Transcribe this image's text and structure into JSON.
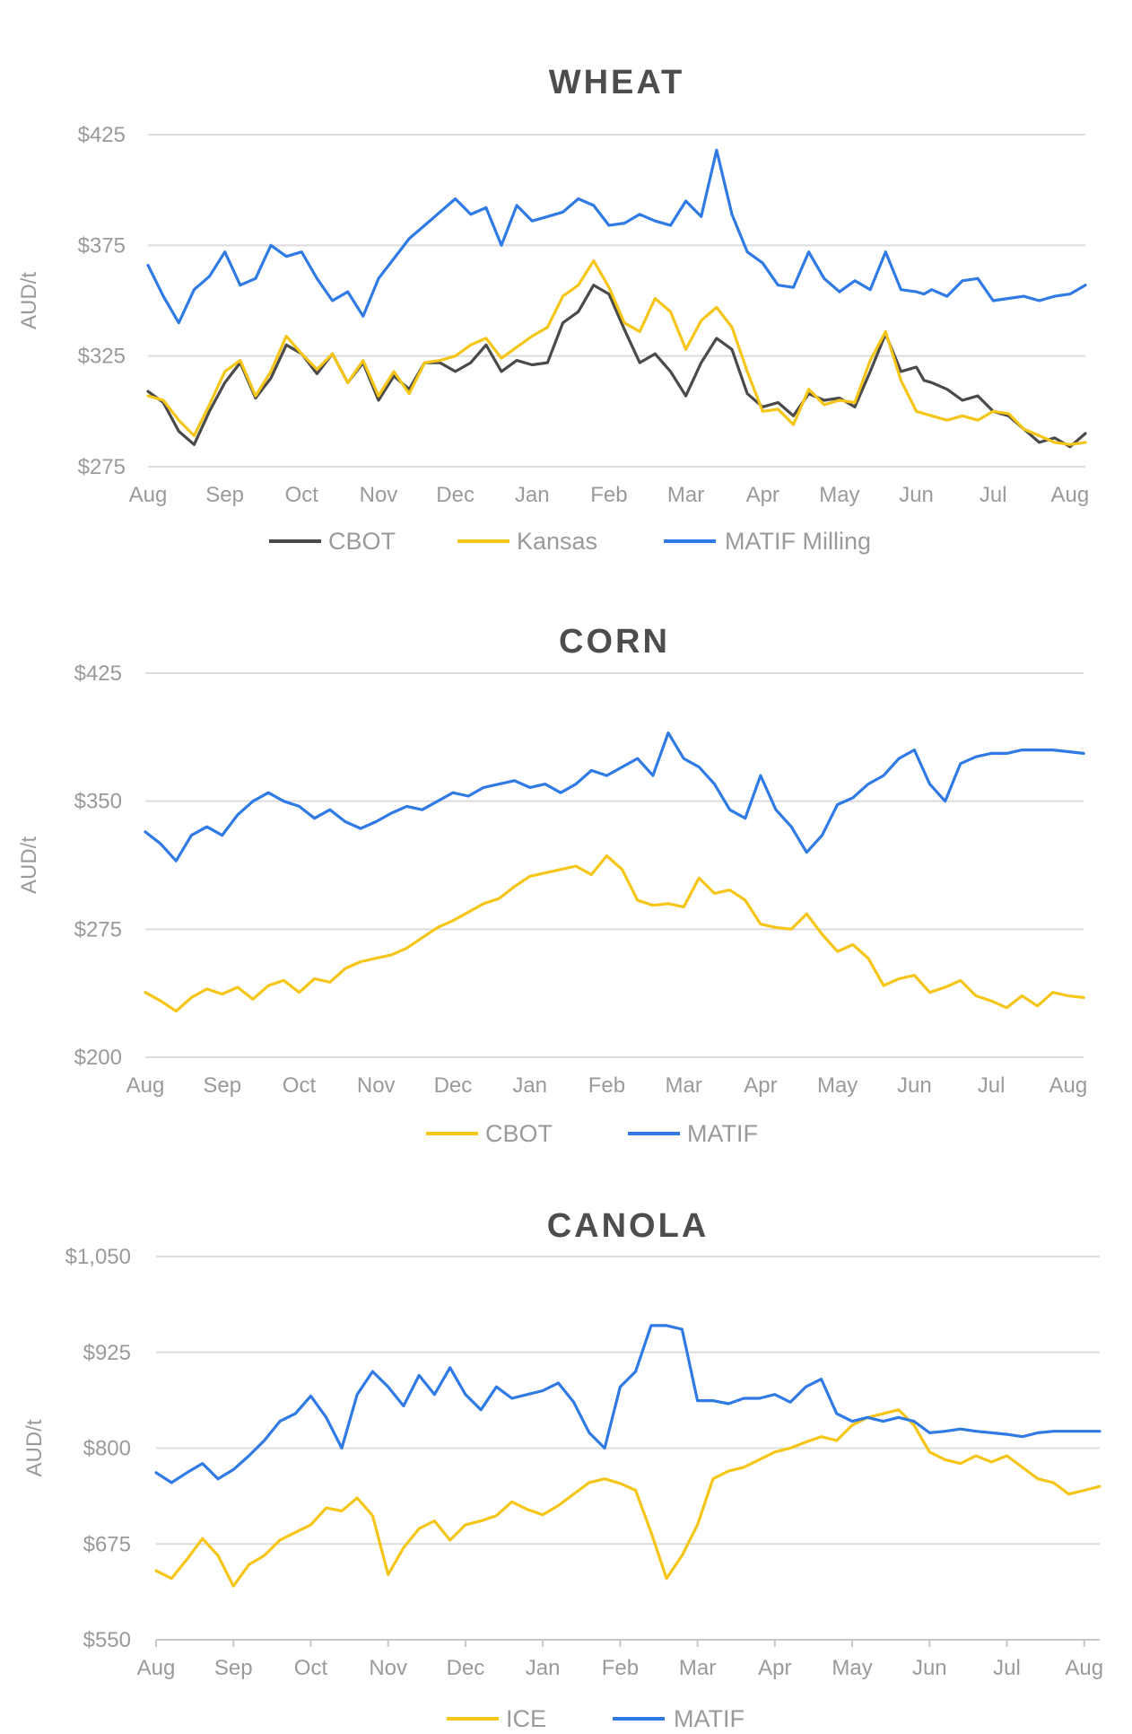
{
  "chart_data": [
    {
      "type": "line",
      "title": "WHEAT",
      "ylabel": "AUD/t",
      "ylim": [
        275,
        425
      ],
      "yticks": [
        275,
        325,
        375,
        425
      ],
      "ytick_labels": [
        "$275",
        "$325",
        "$375",
        "$425"
      ],
      "x_labels": [
        "Aug",
        "Sep",
        "Oct",
        "Nov",
        "Dec",
        "Jan",
        "Feb",
        "Mar",
        "Apr",
        "May",
        "Jun",
        "Jul",
        "Aug"
      ],
      "legend_position": "bottom",
      "series": [
        {
          "name": "CBOT",
          "color": "#4a4a4a",
          "x": [
            0,
            0.2,
            0.4,
            0.6,
            0.8,
            1,
            1.2,
            1.4,
            1.6,
            1.8,
            2,
            2.2,
            2.4,
            2.6,
            2.8,
            3,
            3.2,
            3.4,
            3.6,
            3.8,
            4,
            4.2,
            4.4,
            4.6,
            4.8,
            5,
            5.2,
            5.4,
            5.6,
            5.8,
            6,
            6.2,
            6.4,
            6.6,
            6.8,
            7,
            7.2,
            7.4,
            7.6,
            7.8,
            8,
            8.2,
            8.4,
            8.6,
            8.8,
            9,
            9.2,
            9.4,
            9.6,
            9.8,
            10,
            10.1,
            10.2,
            10.4,
            10.6,
            10.8,
            11,
            11.2,
            11.4,
            11.6,
            11.8,
            12,
            12.2
          ],
          "y": [
            309,
            304,
            291,
            285,
            300,
            313,
            322,
            306,
            315,
            330,
            326,
            317,
            326,
            313,
            322,
            305,
            316,
            310,
            322,
            322,
            318,
            322,
            330,
            318,
            323,
            321,
            322,
            340,
            345,
            357,
            353,
            337,
            322,
            326,
            318,
            307,
            322,
            333,
            328,
            308,
            302,
            304,
            298,
            308,
            305,
            306,
            302,
            318,
            335,
            318,
            320,
            314,
            313,
            310,
            305,
            307,
            300,
            298,
            292,
            286,
            288,
            284,
            290
          ]
        },
        {
          "name": "Kansas",
          "color": "#f5c518",
          "x": [
            0,
            0.2,
            0.4,
            0.6,
            0.8,
            1,
            1.2,
            1.4,
            1.6,
            1.8,
            2,
            2.2,
            2.4,
            2.6,
            2.8,
            3,
            3.2,
            3.4,
            3.6,
            3.8,
            4,
            4.2,
            4.4,
            4.6,
            4.8,
            5,
            5.2,
            5.4,
            5.6,
            5.8,
            6,
            6.2,
            6.4,
            6.6,
            6.8,
            7,
            7.2,
            7.4,
            7.6,
            7.8,
            8,
            8.2,
            8.4,
            8.6,
            8.8,
            9,
            9.2,
            9.4,
            9.6,
            9.8,
            10,
            10.1,
            10.2,
            10.4,
            10.6,
            10.8,
            11,
            11.2,
            11.4,
            11.6,
            11.8,
            12,
            12.2
          ],
          "y": [
            307,
            305,
            296,
            289,
            303,
            318,
            323,
            307,
            318,
            334,
            326,
            319,
            326,
            313,
            323,
            307,
            318,
            308,
            322,
            323,
            325,
            330,
            333,
            324,
            329,
            334,
            338,
            352,
            357,
            368,
            356,
            340,
            336,
            351,
            345,
            328,
            341,
            347,
            338,
            318,
            300,
            301,
            294,
            310,
            303,
            305,
            304,
            323,
            336,
            314,
            300,
            299,
            298,
            296,
            298,
            296,
            300,
            299,
            292,
            289,
            286,
            285,
            286
          ]
        },
        {
          "name": "MATIF Milling",
          "color": "#2f7ae5",
          "x": [
            0,
            0.2,
            0.4,
            0.6,
            0.8,
            1,
            1.2,
            1.4,
            1.6,
            1.8,
            2,
            2.2,
            2.4,
            2.6,
            2.8,
            3,
            3.2,
            3.4,
            3.6,
            3.8,
            4,
            4.2,
            4.4,
            4.6,
            4.8,
            5,
            5.2,
            5.4,
            5.6,
            5.8,
            6,
            6.2,
            6.4,
            6.6,
            6.8,
            7,
            7.2,
            7.4,
            7.6,
            7.8,
            8,
            8.2,
            8.4,
            8.6,
            8.8,
            9,
            9.2,
            9.4,
            9.6,
            9.8,
            10,
            10.1,
            10.2,
            10.4,
            10.6,
            10.8,
            11,
            11.2,
            11.4,
            11.6,
            11.8,
            12,
            12.2
          ],
          "y": [
            366,
            352,
            340,
            355,
            361,
            372,
            357,
            360,
            375,
            370,
            372,
            360,
            350,
            354,
            343,
            360,
            369,
            378,
            384,
            390,
            396,
            389,
            392,
            375,
            393,
            386,
            388,
            390,
            396,
            393,
            384,
            385,
            389,
            386,
            384,
            395,
            388,
            418,
            389,
            372,
            367,
            357,
            356,
            372,
            360,
            354,
            359,
            355,
            372,
            355,
            354,
            353,
            355,
            352,
            359,
            360,
            350,
            351,
            352,
            350,
            352,
            353,
            357
          ]
        }
      ]
    },
    {
      "type": "line",
      "title": "CORN",
      "ylabel": "AUD/t",
      "ylim": [
        200,
        425
      ],
      "yticks": [
        200,
        275,
        350,
        425
      ],
      "ytick_labels": [
        "$200",
        "$275",
        "$350",
        "$425"
      ],
      "x_labels": [
        "Aug",
        "Sep",
        "Oct",
        "Nov",
        "Dec",
        "Jan",
        "Feb",
        "Mar",
        "Apr",
        "May",
        "Jun",
        "Jul",
        "Aug"
      ],
      "legend_position": "bottom",
      "series": [
        {
          "name": "CBOT",
          "color": "#f5c518",
          "x": [
            0,
            0.2,
            0.4,
            0.6,
            0.8,
            1,
            1.2,
            1.4,
            1.6,
            1.8,
            2,
            2.2,
            2.4,
            2.6,
            2.8,
            3,
            3.2,
            3.4,
            3.6,
            3.8,
            4,
            4.2,
            4.4,
            4.6,
            4.8,
            5,
            5.2,
            5.4,
            5.6,
            5.8,
            6,
            6.2,
            6.4,
            6.6,
            6.8,
            7,
            7.2,
            7.4,
            7.6,
            7.8,
            8,
            8.2,
            8.4,
            8.6,
            8.8,
            9,
            9.2,
            9.4,
            9.6,
            9.8,
            10,
            10.2,
            10.4,
            10.6,
            10.8,
            11,
            11.2,
            11.4,
            11.6,
            11.8,
            12,
            12.2
          ],
          "y": [
            238,
            233,
            227,
            235,
            240,
            237,
            241,
            234,
            242,
            245,
            238,
            246,
            244,
            252,
            256,
            258,
            260,
            264,
            270,
            276,
            280,
            285,
            290,
            293,
            300,
            306,
            308,
            310,
            312,
            307,
            318,
            310,
            292,
            289,
            290,
            288,
            305,
            296,
            298,
            292,
            278,
            276,
            275,
            284,
            272,
            262,
            266,
            258,
            242,
            246,
            248,
            238,
            241,
            245,
            236,
            233,
            229,
            236,
            230,
            238,
            236,
            235
          ]
        },
        {
          "name": "MATIF",
          "color": "#2f7ae5",
          "x": [
            0,
            0.2,
            0.4,
            0.6,
            0.8,
            1,
            1.2,
            1.4,
            1.6,
            1.8,
            2,
            2.2,
            2.4,
            2.6,
            2.8,
            3,
            3.2,
            3.4,
            3.6,
            3.8,
            4,
            4.2,
            4.4,
            4.6,
            4.8,
            5,
            5.2,
            5.4,
            5.6,
            5.8,
            6,
            6.2,
            6.4,
            6.6,
            6.8,
            7,
            7.2,
            7.4,
            7.6,
            7.8,
            8,
            8.2,
            8.4,
            8.6,
            8.8,
            9,
            9.2,
            9.4,
            9.6,
            9.8,
            10,
            10.2,
            10.4,
            10.6,
            10.8,
            11,
            11.2,
            11.4,
            11.6,
            11.8,
            12,
            12.2
          ],
          "y": [
            332,
            325,
            315,
            330,
            335,
            330,
            342,
            350,
            355,
            350,
            347,
            340,
            345,
            338,
            334,
            338,
            343,
            347,
            345,
            350,
            355,
            353,
            358,
            360,
            362,
            358,
            360,
            355,
            360,
            368,
            365,
            370,
            375,
            365,
            390,
            375,
            370,
            360,
            345,
            340,
            365,
            345,
            335,
            320,
            330,
            348,
            352,
            360,
            365,
            375,
            380,
            360,
            350,
            372,
            376,
            378,
            378,
            380,
            380,
            380,
            379,
            378
          ]
        }
      ]
    },
    {
      "type": "line",
      "title": "CANOLA",
      "ylabel": "AUD/t",
      "ylim": [
        550,
        1050
      ],
      "yticks": [
        550,
        675,
        800,
        925,
        1050
      ],
      "ytick_labels": [
        "$550",
        "$675",
        "$800",
        "$925",
        "$1,050"
      ],
      "x_labels": [
        "Aug",
        "Sep",
        "Oct",
        "Nov",
        "Dec",
        "Jan",
        "Feb",
        "Mar",
        "Apr",
        "May",
        "Jun",
        "Jul",
        "Aug"
      ],
      "legend_position": "bottom",
      "series": [
        {
          "name": "ICE",
          "color": "#f5c518",
          "x": [
            0,
            0.2,
            0.4,
            0.6,
            0.8,
            1,
            1.2,
            1.4,
            1.6,
            1.8,
            2,
            2.2,
            2.4,
            2.6,
            2.8,
            3,
            3.2,
            3.4,
            3.6,
            3.8,
            4,
            4.2,
            4.4,
            4.6,
            4.8,
            5,
            5.2,
            5.4,
            5.6,
            5.8,
            6,
            6.2,
            6.4,
            6.6,
            6.8,
            7,
            7.2,
            7.4,
            7.6,
            7.8,
            8,
            8.2,
            8.4,
            8.6,
            8.8,
            9,
            9.2,
            9.4,
            9.6,
            9.8,
            10,
            10.2,
            10.4,
            10.6,
            10.8,
            11,
            11.2,
            11.4,
            11.6,
            11.8,
            12,
            12.2
          ],
          "y": [
            640,
            630,
            655,
            682,
            660,
            620,
            648,
            660,
            680,
            690,
            700,
            722,
            718,
            735,
            712,
            635,
            670,
            695,
            705,
            680,
            700,
            705,
            712,
            730,
            720,
            713,
            725,
            740,
            755,
            760,
            754,
            745,
            690,
            630,
            660,
            700,
            760,
            770,
            775,
            785,
            795,
            800,
            808,
            815,
            810,
            830,
            840,
            845,
            850,
            830,
            795,
            785,
            780,
            790,
            782,
            790,
            775,
            760,
            755,
            740,
            745,
            750
          ]
        },
        {
          "name": "MATIF",
          "color": "#2f7ae5",
          "x": [
            0,
            0.2,
            0.4,
            0.6,
            0.8,
            1,
            1.2,
            1.4,
            1.6,
            1.8,
            2,
            2.2,
            2.4,
            2.6,
            2.8,
            3,
            3.2,
            3.4,
            3.6,
            3.8,
            4,
            4.2,
            4.4,
            4.6,
            4.8,
            5,
            5.2,
            5.4,
            5.6,
            5.8,
            6,
            6.2,
            6.4,
            6.6,
            6.8,
            7,
            7.2,
            7.4,
            7.6,
            7.8,
            8,
            8.2,
            8.4,
            8.6,
            8.8,
            9,
            9.2,
            9.4,
            9.6,
            9.8,
            10,
            10.2,
            10.4,
            10.6,
            10.8,
            11,
            11.2,
            11.4,
            11.6,
            11.8,
            12,
            12.2
          ],
          "y": [
            768,
            755,
            768,
            780,
            760,
            772,
            790,
            810,
            835,
            845,
            868,
            840,
            800,
            870,
            900,
            880,
            855,
            895,
            870,
            905,
            870,
            850,
            880,
            865,
            870,
            875,
            885,
            860,
            820,
            800,
            880,
            900,
            960,
            960,
            955,
            862,
            862,
            858,
            865,
            865,
            870,
            860,
            880,
            890,
            845,
            835,
            840,
            835,
            840,
            835,
            820,
            822,
            825,
            822,
            820,
            818,
            815,
            820,
            822,
            822,
            822,
            822
          ]
        }
      ]
    }
  ]
}
